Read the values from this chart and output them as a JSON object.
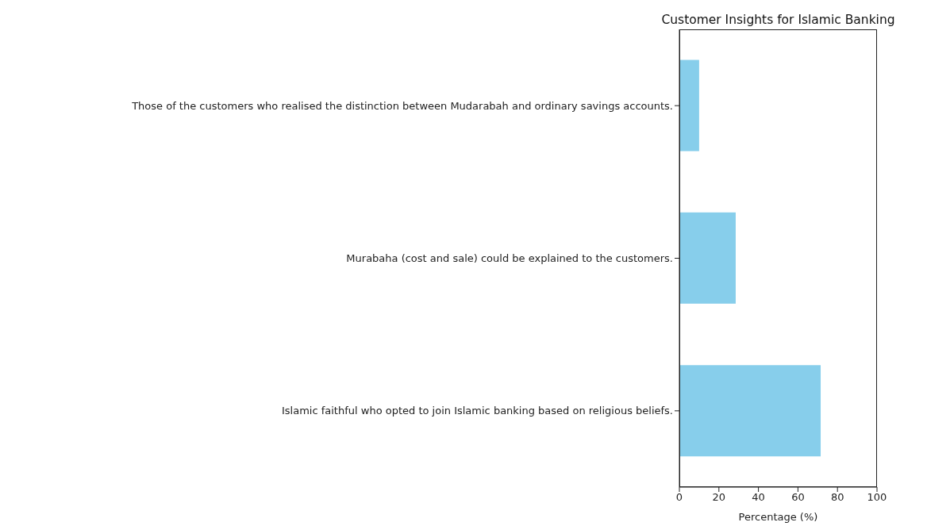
{
  "chart_data": {
    "type": "bar",
    "orientation": "horizontal",
    "title": "Customer Insights for Islamic Banking",
    "xlabel": "Percentage (%)",
    "categories": [
      "Those of the customers who realised the distinction between Mudarabah and ordinary savings accounts.",
      "Murabaha (cost and sale) could be explained to the customers.",
      "Islamic faithful who opted to join Islamic banking based on religious beliefs."
    ],
    "values": [
      10,
      28.5,
      71.5
    ],
    "color": "#87ceeb",
    "xlim": [
      0,
      100
    ],
    "xticks": [
      0,
      20,
      40,
      60,
      80,
      100
    ],
    "grid": false
  }
}
